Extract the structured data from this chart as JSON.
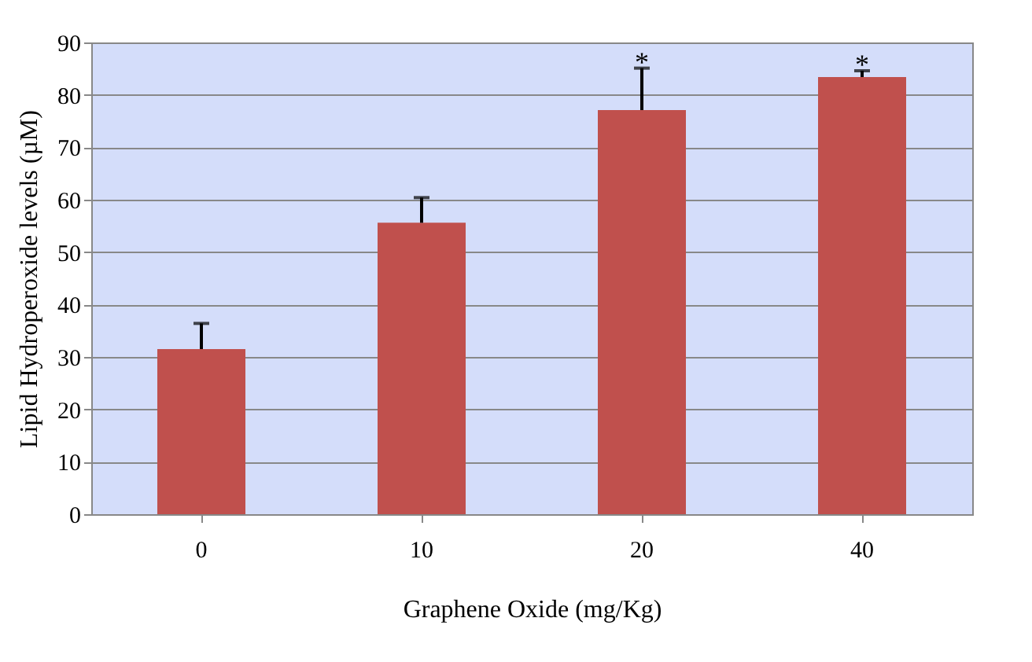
{
  "chart_data": {
    "type": "bar",
    "xlabel": "Graphene Oxide (mg/Kg)",
    "ylabel": "Lipid Hydroperoxide levels (µM)",
    "categories": [
      "0",
      "10",
      "20",
      "40"
    ],
    "values": [
      31.5,
      55.6,
      77.1,
      83.4
    ],
    "errors": [
      [
        31.5,
        36.4
      ],
      [
        55.6,
        60.4
      ],
      [
        77.1,
        85.1
      ],
      [
        83.4,
        84.6
      ]
    ],
    "color": "#c0504d",
    "annotations": [
      {
        "text": "*",
        "x": "20",
        "y": 85.1
      },
      {
        "text": "*",
        "x": "40",
        "y": 84.6
      }
    ],
    "ylim": [
      0,
      90
    ],
    "yticks": [
      0,
      10,
      20,
      30,
      40,
      50,
      60,
      70,
      80,
      90
    ],
    "grid": "y"
  }
}
